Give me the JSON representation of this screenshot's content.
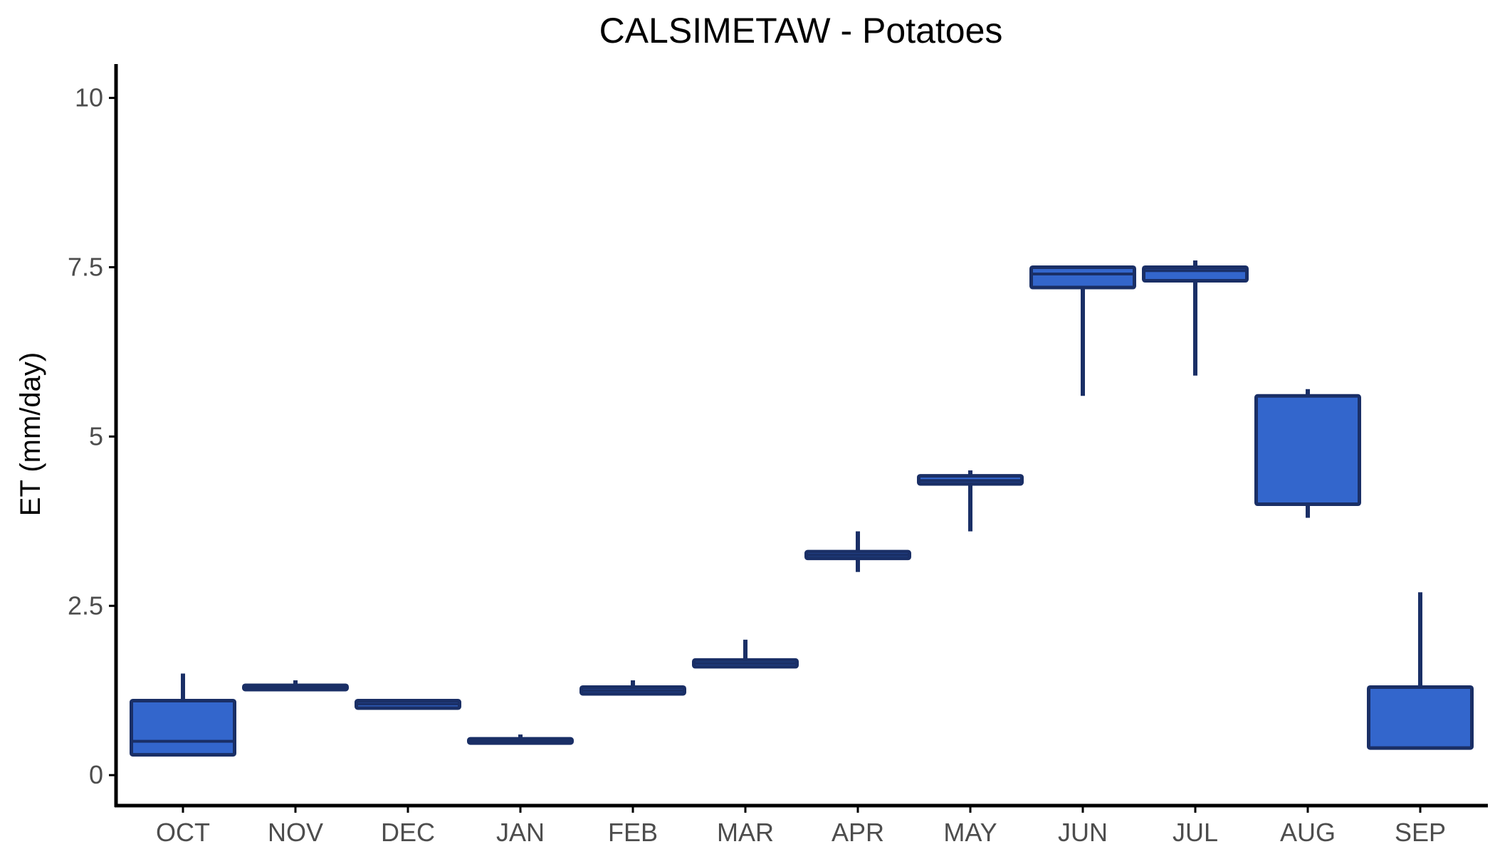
{
  "chart_data": {
    "type": "boxplot",
    "title": "CALSIMETAW - Potatoes",
    "xlabel": "",
    "ylabel": "ET (mm/day)",
    "ylim": [
      -0.45,
      10.5
    ],
    "y_ticks": [
      0,
      2.5,
      5,
      7.5,
      10
    ],
    "y_tick_labels": [
      "0",
      "2.5",
      "5",
      "7.5",
      "10"
    ],
    "grid": false,
    "legend": "none",
    "colors": {
      "box_fill": "#3366CC",
      "box_outline": "#1A2F66",
      "axis": "#000000",
      "tick_label": "#4D4D4D"
    },
    "categories": [
      "OCT",
      "NOV",
      "DEC",
      "JAN",
      "FEB",
      "MAR",
      "APR",
      "MAY",
      "JUN",
      "JUL",
      "AUG",
      "SEP"
    ],
    "boxes": [
      {
        "min": 0.3,
        "q1": 0.3,
        "median": 0.5,
        "q3": 1.1,
        "max": 1.5
      },
      {
        "min": 1.25,
        "q1": 1.27,
        "median": 1.3,
        "q3": 1.32,
        "max": 1.4
      },
      {
        "min": 0.98,
        "q1": 0.99,
        "median": 1.05,
        "q3": 1.1,
        "max": 1.12
      },
      {
        "min": 0.48,
        "q1": 0.49,
        "median": 0.5,
        "q3": 0.52,
        "max": 0.6
      },
      {
        "min": 1.2,
        "q1": 1.2,
        "median": 1.25,
        "q3": 1.3,
        "max": 1.4
      },
      {
        "min": 1.6,
        "q1": 1.6,
        "median": 1.65,
        "q3": 1.7,
        "max": 2.0
      },
      {
        "min": 3.0,
        "q1": 3.2,
        "median": 3.25,
        "q3": 3.3,
        "max": 3.6
      },
      {
        "min": 3.6,
        "q1": 4.3,
        "median": 4.35,
        "q3": 4.42,
        "max": 4.5
      },
      {
        "min": 5.6,
        "q1": 7.2,
        "median": 7.4,
        "q3": 7.5,
        "max": 7.5
      },
      {
        "min": 5.9,
        "q1": 7.3,
        "median": 7.45,
        "q3": 7.5,
        "max": 7.6
      },
      {
        "min": 3.8,
        "q1": 4.0,
        "median": 5.6,
        "q3": 5.6,
        "max": 5.7
      },
      {
        "min": 0.4,
        "q1": 0.4,
        "median": 1.3,
        "q3": 1.3,
        "max": 2.7
      }
    ]
  }
}
